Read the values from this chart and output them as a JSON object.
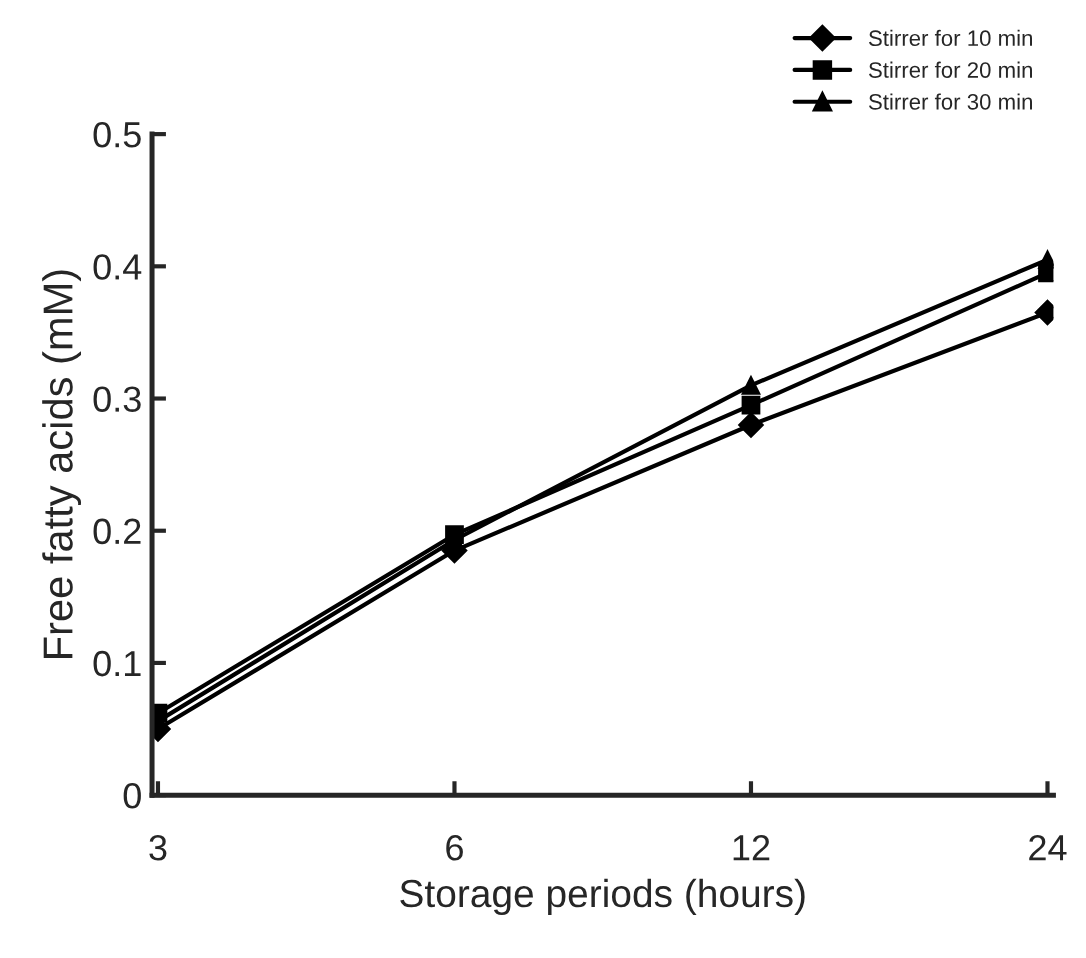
{
  "chart_data": {
    "type": "line",
    "xlabel": "Storage periods (hours)",
    "ylabel": "Free fatty acids (mM)",
    "categories": [
      "3",
      "6",
      "12",
      "24"
    ],
    "series": [
      {
        "name": "Stirrer for 10 min",
        "color": "#000000",
        "marker": "diamond",
        "values": [
          0.05,
          0.185,
          0.28,
          0.365
        ]
      },
      {
        "name": "Stirrer for 20 min",
        "color": "#000000",
        "marker": "square",
        "values": [
          0.062,
          0.197,
          0.295,
          0.395
        ]
      },
      {
        "name": "Stirrer for 30 min",
        "color": "#000000",
        "marker": "triangle",
        "values": [
          0.056,
          0.193,
          0.31,
          0.405
        ]
      }
    ],
    "ylim": [
      0,
      0.5
    ],
    "yticks": [
      {
        "value": 0,
        "label": "0"
      },
      0.1,
      0.2,
      0.3,
      0.4,
      0.5
    ],
    "grid": false,
    "legend": "top right",
    "line_style": "solid"
  }
}
